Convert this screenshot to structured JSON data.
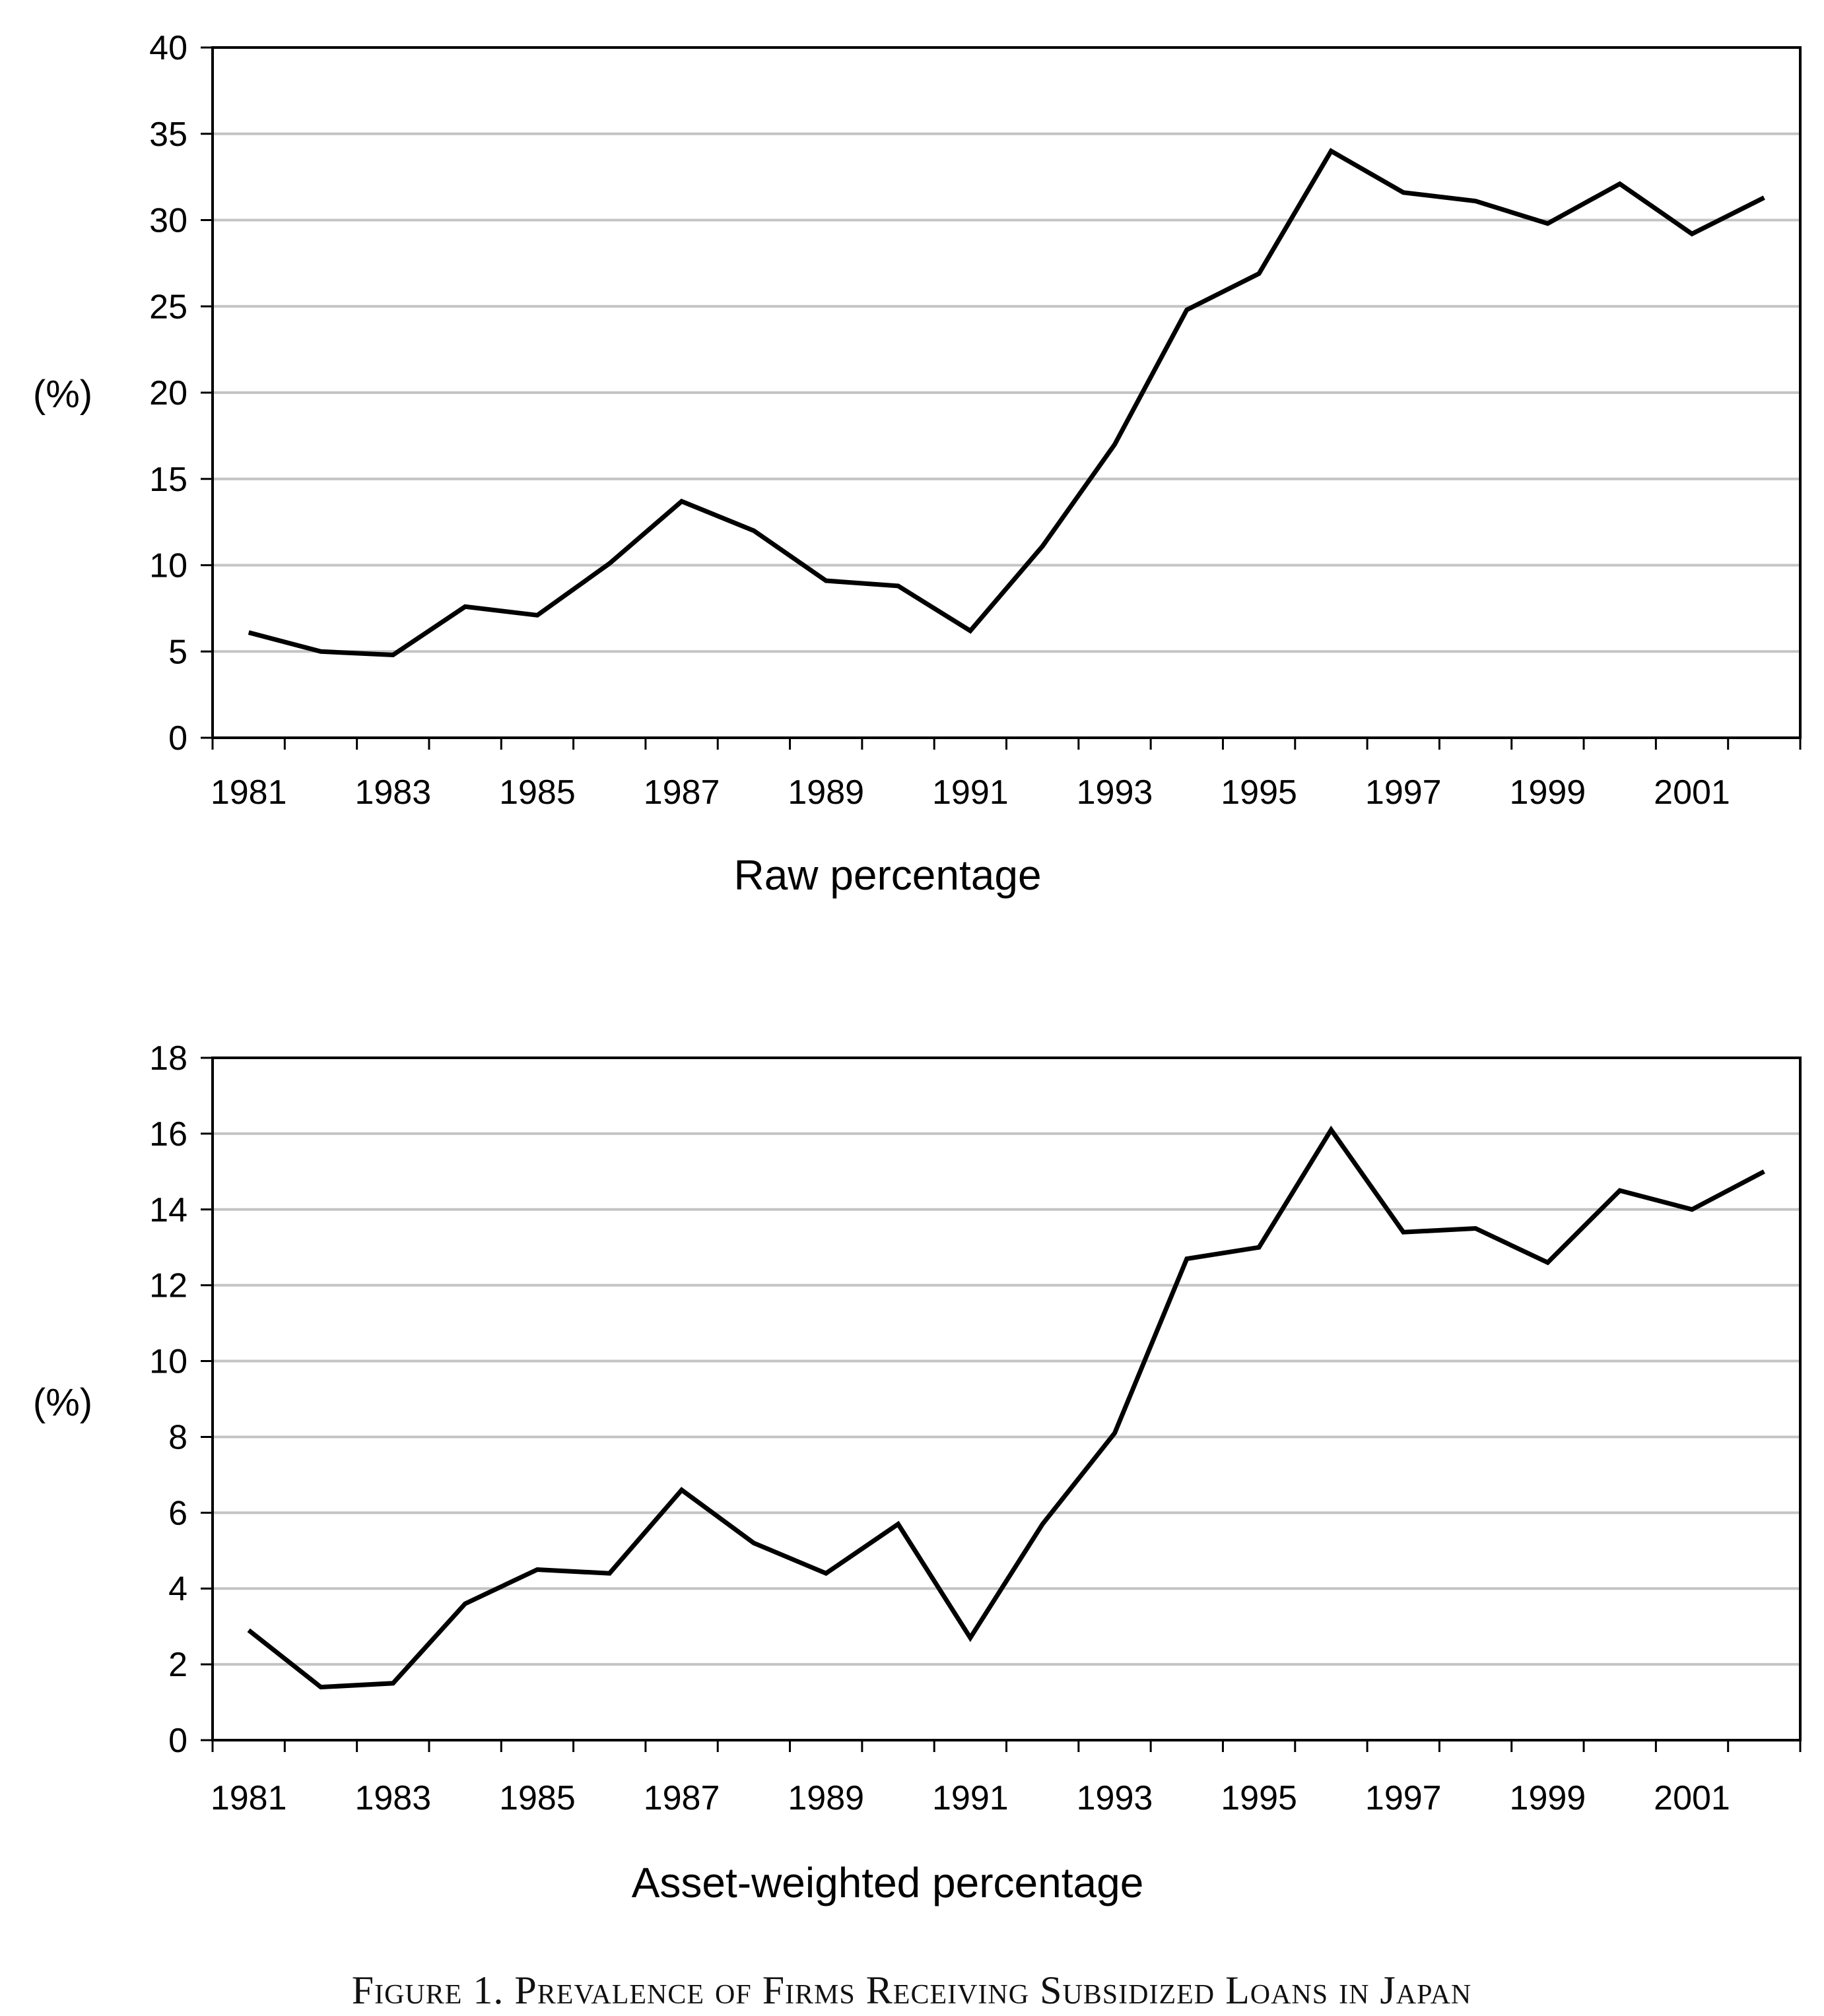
{
  "chart_data": [
    {
      "type": "line",
      "subtitle": "Raw percentage",
      "ylabel": "(%)",
      "xlabel": "",
      "x": [
        1981,
        1982,
        1983,
        1984,
        1985,
        1986,
        1987,
        1988,
        1989,
        1990,
        1991,
        1992,
        1993,
        1994,
        1995,
        1996,
        1997,
        1998,
        1999,
        2000,
        2001,
        2002
      ],
      "x_tick_labels": [
        "1981",
        "1983",
        "1985",
        "1987",
        "1989",
        "1991",
        "1993",
        "1995",
        "1997",
        "1999",
        "2001"
      ],
      "y_tick_labels": [
        "0",
        "5",
        "10",
        "15",
        "20",
        "25",
        "30",
        "35",
        "40"
      ],
      "ylim": [
        0,
        40
      ],
      "grid": "horizontal",
      "series": [
        {
          "values": [
            6.1,
            5.0,
            4.8,
            7.6,
            7.1,
            10.1,
            13.7,
            12.0,
            9.1,
            8.8,
            6.2,
            11.1,
            17.0,
            24.8,
            26.9,
            34.0,
            31.6,
            31.1,
            29.8,
            32.1,
            29.2,
            31.3
          ],
          "color": "#000000"
        }
      ]
    },
    {
      "type": "line",
      "subtitle": "Asset-weighted percentage",
      "ylabel": "(%)",
      "xlabel": "",
      "x": [
        1981,
        1982,
        1983,
        1984,
        1985,
        1986,
        1987,
        1988,
        1989,
        1990,
        1991,
        1992,
        1993,
        1994,
        1995,
        1996,
        1997,
        1998,
        1999,
        2000,
        2001,
        2002
      ],
      "x_tick_labels": [
        "1981",
        "1983",
        "1985",
        "1987",
        "1989",
        "1991",
        "1993",
        "1995",
        "1997",
        "1999",
        "2001"
      ],
      "y_tick_labels": [
        "0",
        "2",
        "4",
        "6",
        "8",
        "10",
        "12",
        "14",
        "16",
        "18"
      ],
      "ylim": [
        0,
        18
      ],
      "grid": "horizontal",
      "series": [
        {
          "values": [
            2.9,
            1.4,
            1.5,
            3.6,
            4.5,
            4.4,
            6.6,
            5.2,
            4.4,
            5.7,
            2.7,
            5.7,
            8.1,
            12.7,
            13.0,
            16.1,
            13.4,
            13.5,
            12.6,
            14.5,
            14.0,
            15.0
          ],
          "color": "#000000"
        }
      ]
    }
  ],
  "caption": "Figure 1. Prevalence of Firms Receiving Subsidized Loans in Japan"
}
